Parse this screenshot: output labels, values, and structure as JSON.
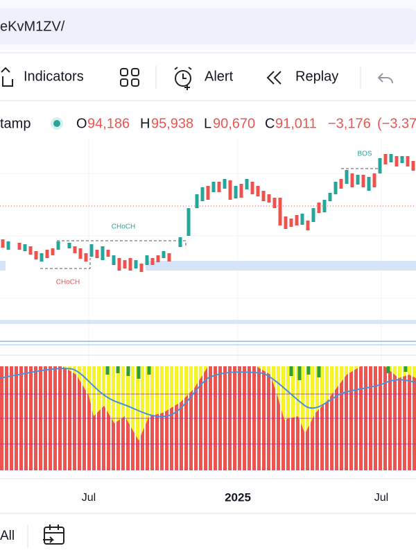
{
  "address_bar": {
    "url": "eKvM1ZV/"
  },
  "toolbar": {
    "indicators": "Indicators",
    "alert": "Alert",
    "replay": "Replay"
  },
  "legend": {
    "symbol": "tamp",
    "open_label": "O",
    "open": "94,186",
    "high_label": "H",
    "high": "95,938",
    "low_label": "L",
    "low": "90,670",
    "close_label": "C",
    "close": "91,011",
    "change": "−3,176",
    "change_pct": "(−3.37"
  },
  "annotations": [
    "CHoCH",
    "CHoCH",
    "BOS"
  ],
  "time_axis": [
    "Jul",
    "2025",
    "Jul"
  ],
  "bottom_bar": {
    "range": "All"
  }
}
